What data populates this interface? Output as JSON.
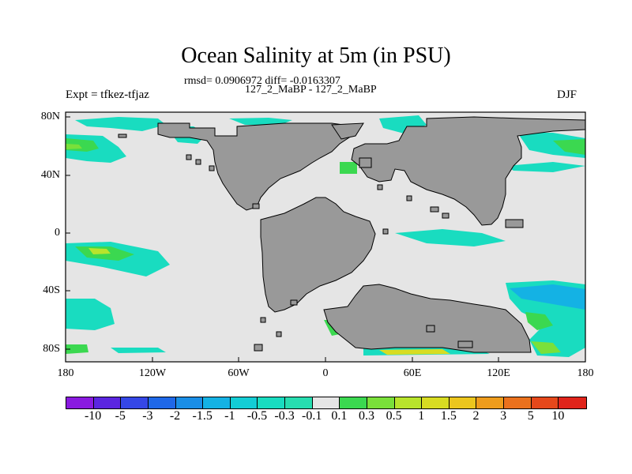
{
  "title": "Ocean Salinity at 5m (in PSU)",
  "stats": "rmsd= 0.0906972 diff= -0.0163307",
  "subtitle": "127_2_MaBP - 127_2_MaBP",
  "left_label": "Expt = tfkez-tfjaz",
  "right_label": "DJF",
  "lat_ticks": [
    "80N",
    "40N",
    "0",
    "40S",
    "80S"
  ],
  "lon_ticks": [
    "180",
    "120W",
    "60W",
    "0",
    "60E",
    "120E",
    "180"
  ],
  "colorbar": {
    "labels": [
      "-10",
      "-5",
      "-3",
      "-2",
      "-1.5",
      "-1",
      "-0.5",
      "-0.3",
      "-0.1",
      "0.1",
      "0.3",
      "0.5",
      "1",
      "1.5",
      "2",
      "3",
      "5",
      "10"
    ],
    "colors": [
      "#8a1ae0",
      "#5b25e0",
      "#3547e6",
      "#1f68e8",
      "#1a8ee6",
      "#14b2e4",
      "#13cdd5",
      "#19dcc0",
      "#27ddb0",
      "#e5e5e5",
      "#3bd850",
      "#7ae03a",
      "#b8e42c",
      "#d8dc22",
      "#ecc61e",
      "#ee9c1c",
      "#ea711d",
      "#e5481b",
      "#e0241b"
    ]
  },
  "colors": {
    "ocean": "#e5e5e5",
    "land": "#999999"
  }
}
